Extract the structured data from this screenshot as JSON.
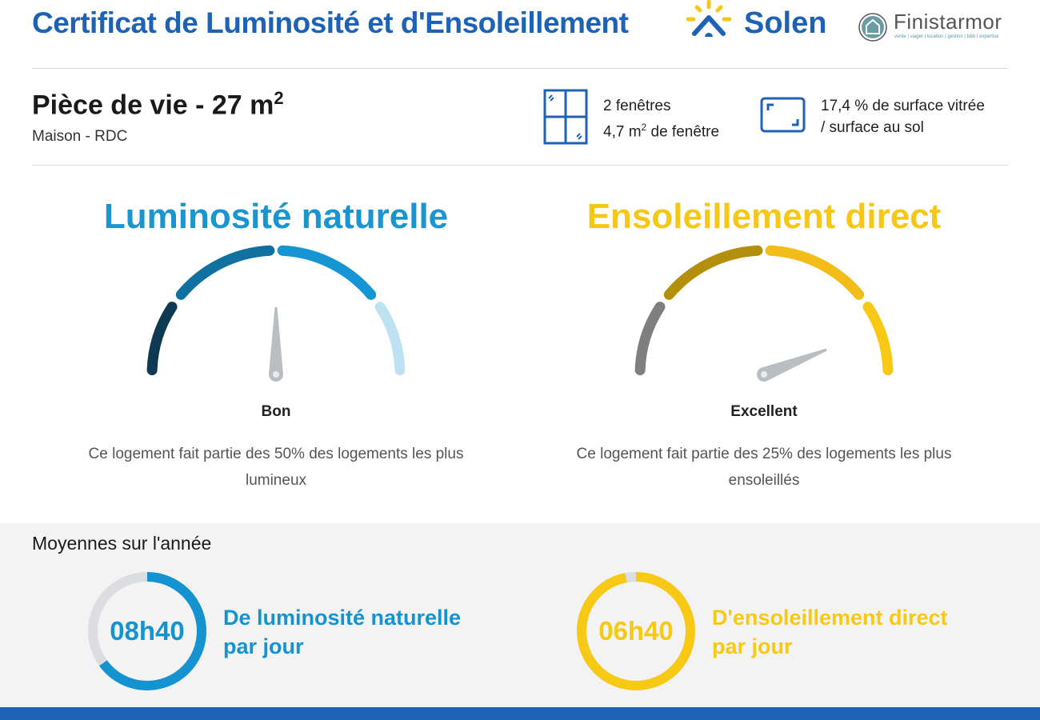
{
  "header": {
    "title": "Certificat de Luminosité et d'Ensoleillement",
    "brand": "Solen",
    "partner": "Finistarmor",
    "partner_tagline": "vente | viager | location | gestion | b&b | expertise"
  },
  "room": {
    "name": "Pièce de vie - 27 m",
    "name_sup": "2",
    "subtitle": "Maison - RDC"
  },
  "windows": {
    "count": "2 fenêtres",
    "area_pre": "4,7 m",
    "area_sup": "2",
    "area_post": " de fenêtre"
  },
  "glazing": {
    "line1": "17,4 % de surface vitrée",
    "line2": "/ surface au sol"
  },
  "gauges": [
    {
      "title": "Luminosité naturelle",
      "label": "Bon",
      "desc": "Ce logement fait partie des 50% des logements les plus lumineux",
      "value": 0.5,
      "title_color": "#1a95d0",
      "colors": [
        "#0d3a52",
        "#10709f",
        "#1596d3",
        "#bfe2f2"
      ]
    },
    {
      "title": "Ensoleillement direct",
      "label": "Excellent",
      "desc": "Ce logement fait partie des 25% des logements les plus ensoleillés",
      "value": 0.88,
      "title_color": "#f6c717",
      "colors": [
        "#7f7f7f",
        "#b38f0b",
        "#f2bd19",
        "#f7c915"
      ]
    }
  ],
  "averages": {
    "title": "Moyennes sur l'année",
    "items": [
      {
        "value": "08h40",
        "line1": "De luminosité naturelle",
        "line2": "par jour",
        "fraction": 0.65,
        "color": "#1593d0"
      },
      {
        "value": "06h40",
        "line1": "D'ensoleillement direct",
        "line2": "par jour",
        "fraction": 0.97,
        "color": "#f7c915"
      }
    ]
  }
}
